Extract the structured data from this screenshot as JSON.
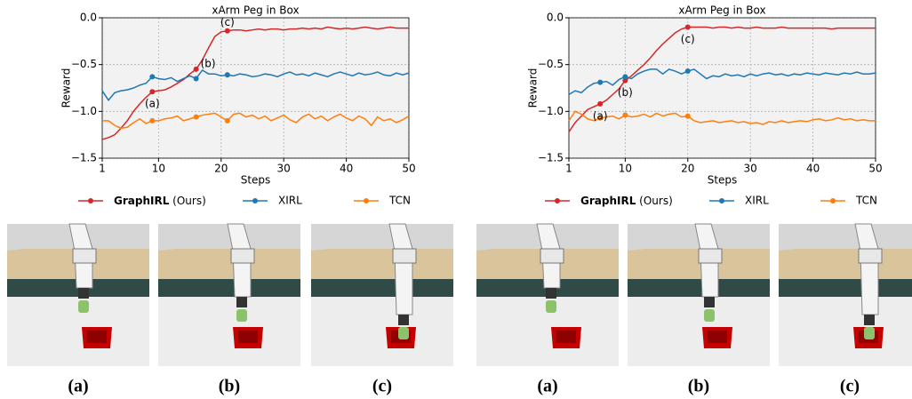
{
  "chart_data": [
    {
      "type": "line",
      "title": "xArm Peg in Box",
      "x_label": "Steps",
      "y_label": "Reward",
      "x": [
        1,
        2,
        3,
        4,
        5,
        6,
        7,
        8,
        9,
        10,
        11,
        12,
        13,
        14,
        15,
        16,
        17,
        18,
        19,
        20,
        21,
        22,
        23,
        24,
        25,
        26,
        27,
        28,
        29,
        30,
        31,
        32,
        33,
        34,
        35,
        36,
        37,
        38,
        39,
        40,
        41,
        42,
        43,
        44,
        45,
        46,
        47,
        48,
        49,
        50
      ],
      "xlim": [
        1,
        50
      ],
      "xticks": [
        1,
        10,
        20,
        30,
        40,
        50
      ],
      "ylim": [
        -1.5,
        0
      ],
      "yticks": [
        {
          "value": -1.5,
          "label": "−1.5"
        },
        {
          "value": -1,
          "label": "−1.0"
        },
        {
          "value": -0.5,
          "label": "−0.5"
        },
        {
          "value": 0,
          "label": "0.0"
        }
      ],
      "grid": true,
      "markers": [
        9,
        16,
        21
      ],
      "series": [
        {
          "name": "GraphIRL (Ours)",
          "color": "#d62728",
          "values": [
            -1.3,
            -1.28,
            -1.25,
            -1.18,
            -1.1,
            -1.0,
            -0.92,
            -0.85,
            -0.79,
            -0.78,
            -0.77,
            -0.74,
            -0.7,
            -0.66,
            -0.6,
            -0.55,
            -0.45,
            -0.32,
            -0.2,
            -0.15,
            -0.14,
            -0.13,
            -0.13,
            -0.14,
            -0.13,
            -0.12,
            -0.13,
            -0.12,
            -0.12,
            -0.13,
            -0.12,
            -0.12,
            -0.11,
            -0.12,
            -0.11,
            -0.12,
            -0.1,
            -0.11,
            -0.12,
            -0.11,
            -0.12,
            -0.11,
            -0.1,
            -0.11,
            -0.12,
            -0.11,
            -0.1,
            -0.11,
            -0.11,
            -0.11
          ]
        },
        {
          "name": "XIRL",
          "color": "#1f77b4",
          "values": [
            -0.78,
            -0.88,
            -0.8,
            -0.78,
            -0.77,
            -0.75,
            -0.72,
            -0.7,
            -0.63,
            -0.65,
            -0.66,
            -0.64,
            -0.68,
            -0.65,
            -0.62,
            -0.65,
            -0.56,
            -0.6,
            -0.6,
            -0.62,
            -0.61,
            -0.62,
            -0.6,
            -0.61,
            -0.63,
            -0.62,
            -0.6,
            -0.61,
            -0.63,
            -0.6,
            -0.58,
            -0.61,
            -0.6,
            -0.62,
            -0.59,
            -0.61,
            -0.63,
            -0.6,
            -0.58,
            -0.6,
            -0.62,
            -0.59,
            -0.61,
            -0.6,
            -0.58,
            -0.61,
            -0.62,
            -0.59,
            -0.61,
            -0.59
          ]
        },
        {
          "name": "TCN",
          "color": "#ff7f0e",
          "values": [
            -1.1,
            -1.1,
            -1.15,
            -1.18,
            -1.17,
            -1.12,
            -1.08,
            -1.13,
            -1.1,
            -1.1,
            -1.08,
            -1.07,
            -1.05,
            -1.1,
            -1.08,
            -1.06,
            -1.04,
            -1.03,
            -1.02,
            -1.06,
            -1.1,
            -1.03,
            -1.02,
            -1.06,
            -1.04,
            -1.08,
            -1.05,
            -1.1,
            -1.07,
            -1.04,
            -1.09,
            -1.12,
            -1.06,
            -1.03,
            -1.08,
            -1.05,
            -1.1,
            -1.06,
            -1.03,
            -1.07,
            -1.1,
            -1.05,
            -1.08,
            -1.15,
            -1.06,
            -1.1,
            -1.08,
            -1.12,
            -1.09,
            -1.05
          ]
        }
      ],
      "annotations": [
        {
          "text": "(a)",
          "series": 0,
          "x": 9,
          "position": "below"
        },
        {
          "text": "(b)",
          "series": 0,
          "x": 16,
          "position": "right"
        },
        {
          "text": "(c)",
          "series": 0,
          "x": 21,
          "position": "above"
        }
      ]
    },
    {
      "type": "line",
      "title": "xArm Peg in Box",
      "x_label": "Steps",
      "y_label": "Reward",
      "x": [
        1,
        2,
        3,
        4,
        5,
        6,
        7,
        8,
        9,
        10,
        11,
        12,
        13,
        14,
        15,
        16,
        17,
        18,
        19,
        20,
        21,
        22,
        23,
        24,
        25,
        26,
        27,
        28,
        29,
        30,
        31,
        32,
        33,
        34,
        35,
        36,
        37,
        38,
        39,
        40,
        41,
        42,
        43,
        44,
        45,
        46,
        47,
        48,
        49,
        50
      ],
      "xlim": [
        1,
        50
      ],
      "xticks": [
        1,
        10,
        20,
        30,
        40,
        50
      ],
      "ylim": [
        -1.5,
        0
      ],
      "yticks": [
        {
          "value": -1.5,
          "label": "−1.5"
        },
        {
          "value": -1,
          "label": "−1.0"
        },
        {
          "value": -0.5,
          "label": "−0.5"
        },
        {
          "value": 0,
          "label": "0.0"
        }
      ],
      "grid": true,
      "markers": [
        6,
        10,
        20
      ],
      "series": [
        {
          "name": "GraphIRL (Ours)",
          "color": "#d62728",
          "values": [
            -1.22,
            -1.12,
            -1.05,
            -0.98,
            -0.95,
            -0.92,
            -0.88,
            -0.82,
            -0.76,
            -0.67,
            -0.62,
            -0.56,
            -0.5,
            -0.43,
            -0.35,
            -0.28,
            -0.22,
            -0.16,
            -0.12,
            -0.1,
            -0.1,
            -0.1,
            -0.1,
            -0.11,
            -0.1,
            -0.1,
            -0.11,
            -0.1,
            -0.11,
            -0.11,
            -0.1,
            -0.11,
            -0.11,
            -0.11,
            -0.1,
            -0.11,
            -0.11,
            -0.11,
            -0.11,
            -0.11,
            -0.11,
            -0.11,
            -0.12,
            -0.11,
            -0.11,
            -0.11,
            -0.11,
            -0.11,
            -0.11,
            -0.11
          ]
        },
        {
          "name": "XIRL",
          "color": "#1f77b4",
          "values": [
            -0.82,
            -0.78,
            -0.8,
            -0.74,
            -0.7,
            -0.69,
            -0.68,
            -0.72,
            -0.66,
            -0.63,
            -0.65,
            -0.6,
            -0.57,
            -0.55,
            -0.55,
            -0.6,
            -0.55,
            -0.57,
            -0.6,
            -0.57,
            -0.55,
            -0.6,
            -0.65,
            -0.62,
            -0.63,
            -0.6,
            -0.62,
            -0.61,
            -0.63,
            -0.6,
            -0.62,
            -0.6,
            -0.59,
            -0.61,
            -0.6,
            -0.62,
            -0.6,
            -0.61,
            -0.59,
            -0.6,
            -0.61,
            -0.59,
            -0.6,
            -0.61,
            -0.59,
            -0.6,
            -0.58,
            -0.6,
            -0.6,
            -0.59
          ]
        },
        {
          "name": "TCN",
          "color": "#ff7f0e",
          "values": [
            -1.1,
            -1.0,
            -1.03,
            -1.08,
            -1.1,
            -1.07,
            -1.06,
            -1.05,
            -1.08,
            -1.04,
            -1.06,
            -1.05,
            -1.03,
            -1.06,
            -1.02,
            -1.05,
            -1.03,
            -1.02,
            -1.06,
            -1.05,
            -1.1,
            -1.12,
            -1.11,
            -1.1,
            -1.12,
            -1.11,
            -1.1,
            -1.12,
            -1.11,
            -1.13,
            -1.12,
            -1.14,
            -1.11,
            -1.12,
            -1.1,
            -1.12,
            -1.11,
            -1.1,
            -1.11,
            -1.09,
            -1.08,
            -1.1,
            -1.09,
            -1.07,
            -1.09,
            -1.08,
            -1.1,
            -1.09,
            -1.1,
            -1.1
          ]
        }
      ],
      "annotations": [
        {
          "text": "(a)",
          "series": 0,
          "x": 6,
          "position": "below"
        },
        {
          "text": "(b)",
          "series": 0,
          "x": 10,
          "position": "below"
        },
        {
          "text": "(c)",
          "series": 0,
          "x": 20,
          "position": "below"
        }
      ]
    }
  ],
  "panels": [
    [
      "(a)",
      "(b)",
      "(c)"
    ],
    [
      "(a)",
      "(b)",
      "(c)"
    ]
  ]
}
